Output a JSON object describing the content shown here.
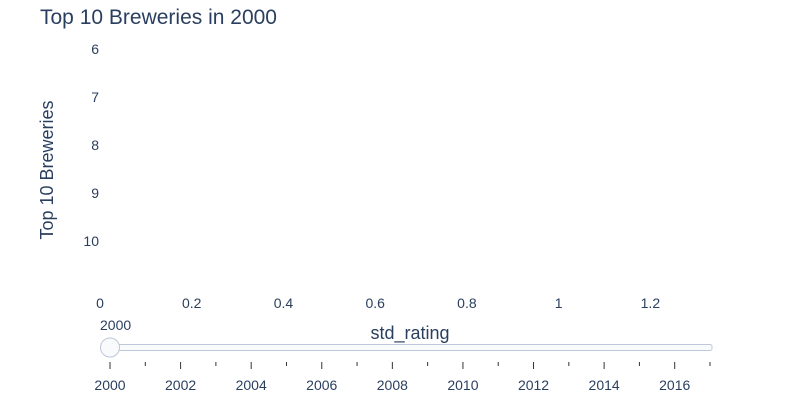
{
  "chart_data": {
    "type": "bar",
    "orientation": "horizontal",
    "title": "Top 10 Breweries in 2000",
    "xlabel": "std_rating",
    "ylabel": "Top 10 Breweries",
    "xlim": [
      0,
      1.33
    ],
    "x_ticks": [
      "0",
      "0.2",
      "0.4",
      "0.6",
      "0.8",
      "1",
      "1.2"
    ],
    "x_tick_values": [
      0,
      0.2,
      0.4,
      0.6,
      0.8,
      1.0,
      1.2
    ],
    "y_ticks": [
      "6",
      "7",
      "8",
      "9",
      "10"
    ],
    "y_tick_values": [
      6,
      7,
      8,
      9,
      10
    ],
    "categories": [],
    "values": [],
    "grid": false
  },
  "slider": {
    "current_label": "2000",
    "current_value": 2000,
    "min": 2000,
    "max": 2017,
    "step": 1,
    "tick_labels": [
      "2000",
      "2002",
      "2004",
      "2006",
      "2008",
      "2010",
      "2012",
      "2014",
      "2016"
    ],
    "colors": {
      "rail_border": "#bec8d9",
      "rail_fill": "#f8fafc",
      "handle_border": "#bec8d9",
      "handle_fill": "#f8fafc",
      "tick": "#333333"
    }
  }
}
